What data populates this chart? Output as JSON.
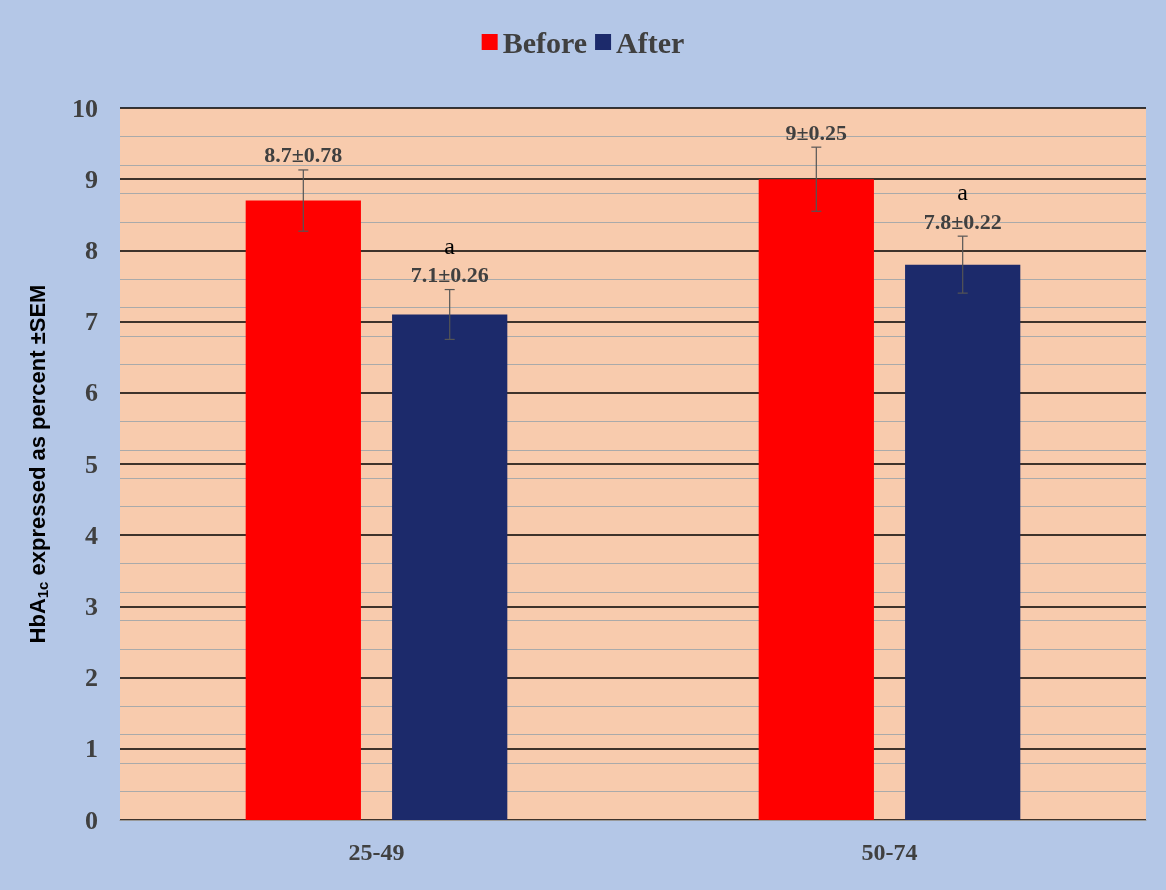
{
  "chart_data": {
    "type": "bar",
    "ylabel": "HbA$_{1c}$ expressed as percent ±SEM",
    "categories": [
      "25-49",
      "50-74"
    ],
    "series": [
      {
        "name": "Before",
        "color": "#ff0000",
        "values": [
          8.7,
          9
        ],
        "errors": [
          0.43,
          0.45
        ],
        "value_labels": [
          "8.7±0.78",
          "9±0.25"
        ]
      },
      {
        "name": "After",
        "color": "#1c2a6b",
        "values": [
          7.1,
          7.8
        ],
        "errors": [
          0.35,
          0.4
        ],
        "value_labels": [
          "7.1±0.26",
          "7.8±0.22"
        ]
      }
    ],
    "annotations": [
      "a",
      "a"
    ],
    "ylim": [
      0,
      10
    ],
    "yticks": [
      0,
      1,
      2,
      3,
      4,
      5,
      6,
      7,
      8,
      9,
      10
    ],
    "grid": "y",
    "legend": "top"
  }
}
